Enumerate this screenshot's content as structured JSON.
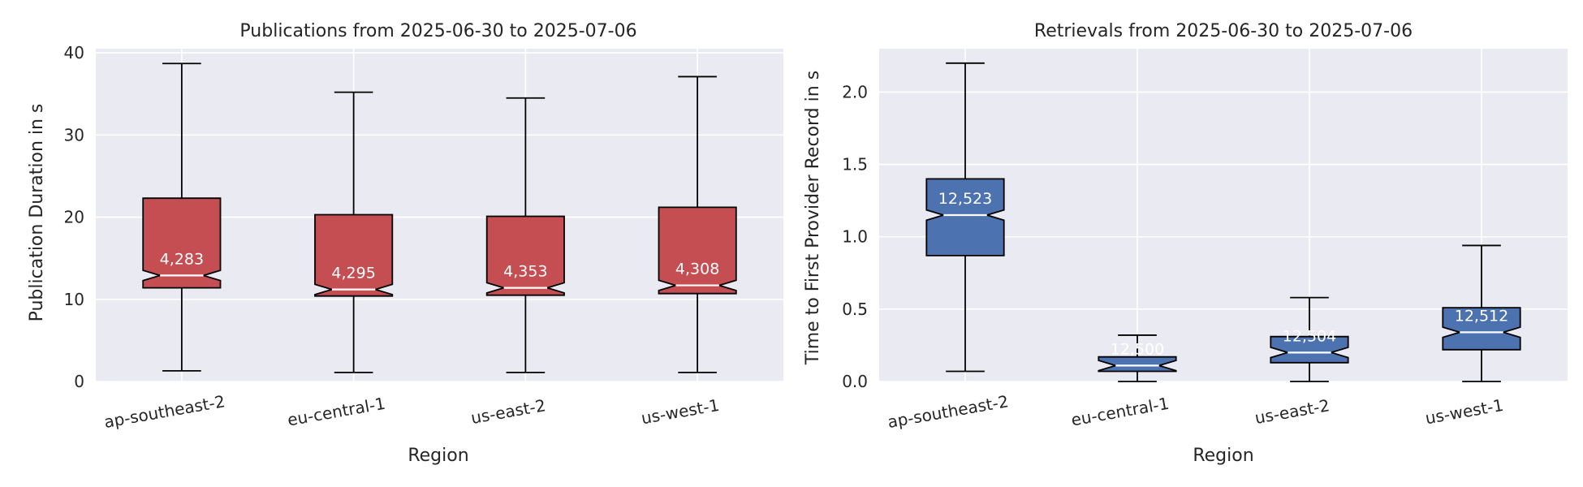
{
  "colors": {
    "plot_bg": "#eaeaf2",
    "grid": "#ffffff",
    "publications_box": "#c44e52",
    "retrievals_box": "#4c72b0",
    "stroke": "#000000",
    "median": "#ffffff"
  },
  "chart_data": [
    {
      "type": "box",
      "title": "Publications from 2025-06-30 to 2025-07-06",
      "xlabel": "Region",
      "ylabel": "Publication Duration in s",
      "ylim": [
        0,
        40.5
      ],
      "yticks": [
        0,
        10,
        20,
        30,
        40
      ],
      "grid": true,
      "notched": true,
      "categories": [
        "ap-southeast-2",
        "eu-central-1",
        "us-east-2",
        "us-west-1"
      ],
      "boxes": [
        {
          "whislo": 1.3,
          "q1": 11.4,
          "med": 12.9,
          "q3": 22.3,
          "whishi": 38.7,
          "count_label": "4,283"
        },
        {
          "whislo": 1.1,
          "q1": 10.4,
          "med": 11.2,
          "q3": 20.3,
          "whishi": 35.2,
          "count_label": "4,295"
        },
        {
          "whislo": 1.1,
          "q1": 10.5,
          "med": 11.4,
          "q3": 20.1,
          "whishi": 34.5,
          "count_label": "4,353"
        },
        {
          "whislo": 1.1,
          "q1": 10.7,
          "med": 11.7,
          "q3": 21.2,
          "whishi": 37.1,
          "count_label": "4,308"
        }
      ]
    },
    {
      "type": "box",
      "title": "Retrievals from 2025-06-30 to 2025-07-06",
      "xlabel": "Region",
      "ylabel": "Time to First Provider Record in s",
      "ylim": [
        0,
        2.3
      ],
      "yticks": [
        "0.0",
        "0.5",
        "1.0",
        "1.5",
        "2.0"
      ],
      "grid": true,
      "notched": true,
      "categories": [
        "ap-southeast-2",
        "eu-central-1",
        "us-east-2",
        "us-west-1"
      ],
      "boxes": [
        {
          "whislo": 0.07,
          "q1": 0.87,
          "med": 1.15,
          "q3": 1.4,
          "whishi": 2.2,
          "count_label": "12,523"
        },
        {
          "whislo": 0.0,
          "q1": 0.07,
          "med": 0.11,
          "q3": 0.17,
          "whishi": 0.32,
          "count_label": "12,500"
        },
        {
          "whislo": 0.0,
          "q1": 0.13,
          "med": 0.2,
          "q3": 0.31,
          "whishi": 0.58,
          "count_label": "12,504"
        },
        {
          "whislo": 0.0,
          "q1": 0.22,
          "med": 0.34,
          "q3": 0.51,
          "whishi": 0.94,
          "count_label": "12,512"
        }
      ]
    }
  ]
}
